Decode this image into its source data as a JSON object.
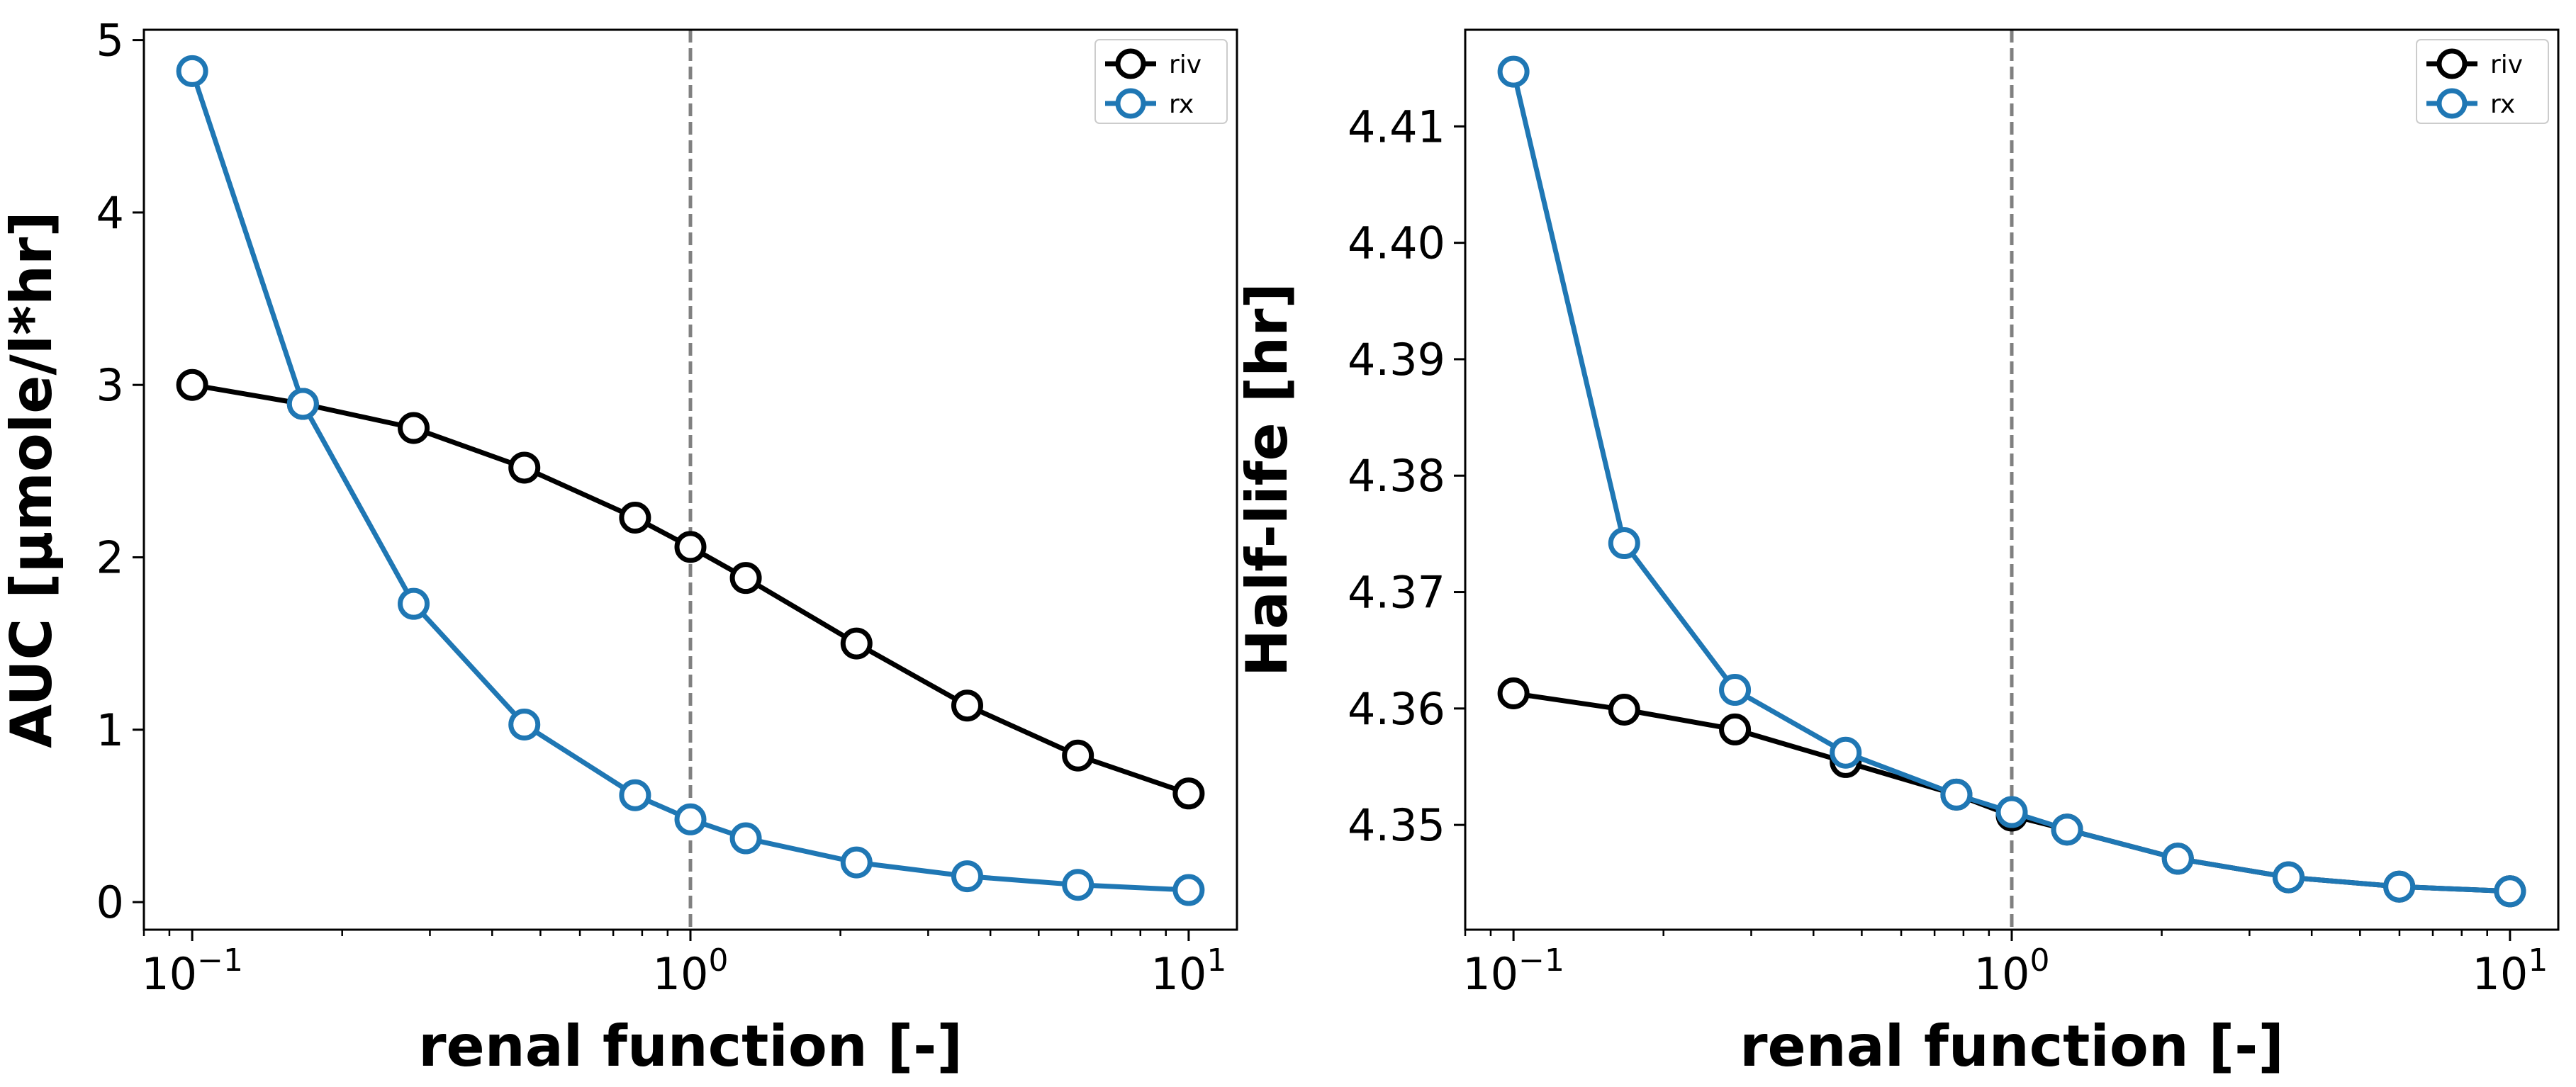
{
  "chart_data": [
    {
      "type": "line",
      "xlabel": "renal function [-]",
      "ylabel": "AUC [µmole/l*hr]",
      "xscale": "log",
      "xlim": [
        0.08,
        12.5
      ],
      "ylim": [
        -0.16,
        5.06
      ],
      "xticks": [
        {
          "value": 0.1,
          "base": "10",
          "exp": "−1"
        },
        {
          "value": 1,
          "base": "10",
          "exp": "0"
        },
        {
          "value": 10,
          "base": "10",
          "exp": "1"
        }
      ],
      "yticks": [
        0,
        1,
        2,
        3,
        4,
        5
      ],
      "ytick_labels": [
        "0",
        "1",
        "2",
        "3",
        "4",
        "5"
      ],
      "vline": {
        "x": 1,
        "style": "dashed",
        "color": "#808080"
      },
      "legend": {
        "position": "top-right"
      },
      "x": [
        0.1,
        0.1668,
        0.2783,
        0.4642,
        0.7743,
        1.0,
        1.2915,
        2.1544,
        3.5938,
        5.9948,
        10.0
      ],
      "series": [
        {
          "name": "riv",
          "color": "#000000",
          "values": [
            3.0,
            2.89,
            2.75,
            2.52,
            2.23,
            2.06,
            1.88,
            1.5,
            1.14,
            0.85,
            0.63
          ]
        },
        {
          "name": "rx",
          "color": "#1f77b4",
          "values": [
            4.82,
            2.89,
            1.73,
            1.03,
            0.62,
            0.48,
            0.37,
            0.23,
            0.15,
            0.1,
            0.07
          ]
        }
      ]
    },
    {
      "type": "line",
      "xlabel": "renal function [-]",
      "ylabel": "Half-life [hr]",
      "xscale": "log",
      "xlim": [
        0.08,
        12.5
      ],
      "ylim": [
        4.341,
        4.4183
      ],
      "xticks": [
        {
          "value": 0.1,
          "base": "10",
          "exp": "−1"
        },
        {
          "value": 1,
          "base": "10",
          "exp": "0"
        },
        {
          "value": 10,
          "base": "10",
          "exp": "1"
        }
      ],
      "yticks": [
        4.35,
        4.36,
        4.37,
        4.38,
        4.39,
        4.4,
        4.41
      ],
      "ytick_labels": [
        "4.35",
        "4.36",
        "4.37",
        "4.38",
        "4.39",
        "4.40",
        "4.41"
      ],
      "vline": {
        "x": 1,
        "style": "dashed",
        "color": "#808080"
      },
      "legend": {
        "position": "top-right"
      },
      "x": [
        0.1,
        0.1668,
        0.2783,
        0.4642,
        0.7743,
        1.0,
        1.2915,
        2.1544,
        3.5938,
        5.9948,
        10.0
      ],
      "series": [
        {
          "name": "riv",
          "color": "#000000",
          "values": [
            4.3613,
            4.3599,
            4.3582,
            4.3554,
            4.3526,
            4.3508,
            4.3496,
            4.3471,
            4.3455,
            4.3447,
            4.3443
          ]
        },
        {
          "name": "rx",
          "color": "#1f77b4",
          "values": [
            4.4147,
            4.3742,
            4.3616,
            4.3562,
            4.3526,
            4.3511,
            4.3496,
            4.3471,
            4.3455,
            4.3447,
            4.3443
          ]
        }
      ]
    }
  ]
}
